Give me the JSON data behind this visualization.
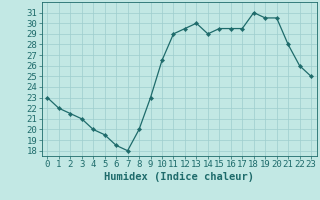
{
  "x": [
    0,
    1,
    2,
    3,
    4,
    5,
    6,
    7,
    8,
    9,
    10,
    11,
    12,
    13,
    14,
    15,
    16,
    17,
    18,
    19,
    20,
    21,
    22,
    23
  ],
  "y": [
    23,
    22,
    21.5,
    21,
    20,
    19.5,
    18.5,
    18,
    20,
    23,
    26.5,
    29,
    29.5,
    30,
    29,
    29.5,
    29.5,
    29.5,
    31,
    30.5,
    30.5,
    28,
    26,
    25
  ],
  "xlabel": "Humidex (Indice chaleur)",
  "ylim": [
    17.5,
    32
  ],
  "xlim": [
    -0.5,
    23.5
  ],
  "yticks": [
    18,
    19,
    20,
    21,
    22,
    23,
    24,
    25,
    26,
    27,
    28,
    29,
    30,
    31
  ],
  "xticks": [
    0,
    1,
    2,
    3,
    4,
    5,
    6,
    7,
    8,
    9,
    10,
    11,
    12,
    13,
    14,
    15,
    16,
    17,
    18,
    19,
    20,
    21,
    22,
    23
  ],
  "bg_color": "#c2e8e4",
  "grid_color": "#9ecece",
  "line_color": "#1e6b6b",
  "tick_label_fontsize": 6.5,
  "xlabel_fontsize": 7.5
}
